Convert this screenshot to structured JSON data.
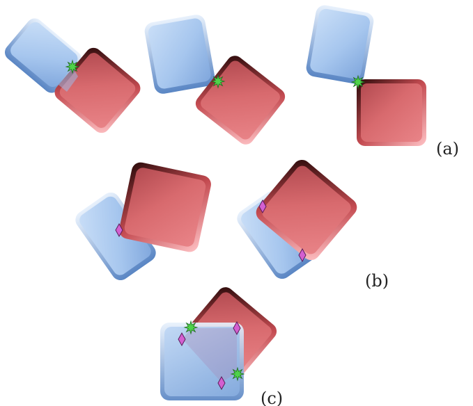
{
  "figure": {
    "panels": [
      {
        "id": "a",
        "label": "(a)"
      },
      {
        "id": "b",
        "label": "(b)"
      },
      {
        "id": "c",
        "label": "(c)"
      }
    ]
  },
  "colors": {
    "blue_box": "#a9c8ee",
    "blue_edge": "#5a86c4",
    "red_box": "#d85e63",
    "red_dark": "#3a1010",
    "contact_star": "#4fd24a",
    "contact_diamond": "#d35fd0"
  },
  "markers": {
    "star": "star-icon",
    "diamond": "diamond-icon"
  }
}
